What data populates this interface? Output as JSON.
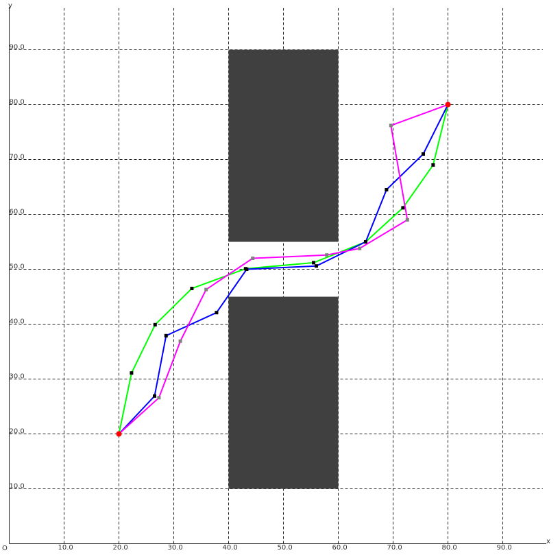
{
  "chart_data": {
    "type": "line",
    "title": "",
    "xlabel": "x",
    "ylabel": "y",
    "origin_label": "O",
    "xlim": [
      0,
      100
    ],
    "ylim": [
      0,
      100
    ],
    "grid": true,
    "x_ticks": [
      10,
      20,
      30,
      40,
      50,
      60,
      70,
      80,
      90
    ],
    "y_ticks": [
      10,
      20,
      30,
      40,
      50,
      60,
      70,
      80,
      90
    ],
    "tick_labels_x": [
      "10.0",
      "20.0",
      "30.0",
      "40.0",
      "50.0",
      "60.0",
      "70.0",
      "80.0",
      "90.0"
    ],
    "tick_labels_y": [
      "10.0",
      "20.0",
      "30.0",
      "40.0",
      "50.0",
      "60.0",
      "70.0",
      "80.0",
      "90.0"
    ],
    "obstacles": [
      {
        "x": [
          40,
          60
        ],
        "y": [
          55,
          90
        ],
        "color": "#404040"
      },
      {
        "x": [
          40,
          60
        ],
        "y": [
          10,
          45
        ],
        "color": "#404040"
      }
    ],
    "endpoints": {
      "points": [
        [
          20,
          20
        ],
        [
          80,
          80
        ]
      ],
      "color": "#ff0000"
    },
    "series": [
      {
        "color": "#00ff00",
        "marker_color": "#000000",
        "points": [
          [
            20,
            20
          ],
          [
            22.3,
            31.1
          ],
          [
            26.6,
            39.9
          ],
          [
            33.3,
            46.5
          ],
          [
            43.1,
            50.1
          ],
          [
            55.5,
            51.2
          ],
          [
            65,
            55
          ],
          [
            71.8,
            61.2
          ],
          [
            77.3,
            69
          ],
          [
            80,
            80
          ]
        ]
      },
      {
        "color": "#0000ff",
        "marker_color": "#000000",
        "points": [
          [
            20,
            20
          ],
          [
            26.5,
            26.9
          ],
          [
            28.6,
            37.9
          ],
          [
            37.8,
            42.1
          ],
          [
            43.3,
            50
          ],
          [
            56,
            50.6
          ],
          [
            65,
            55
          ],
          [
            68.8,
            64.5
          ],
          [
            75.5,
            71
          ],
          [
            80,
            80
          ]
        ]
      },
      {
        "color": "#ff00ff",
        "marker_color": "#808080",
        "points": [
          [
            20,
            20
          ],
          [
            27.3,
            26.6
          ],
          [
            31.2,
            36.9
          ],
          [
            35.9,
            46.3
          ],
          [
            44.4,
            52
          ],
          [
            57.9,
            52.6
          ],
          [
            63.9,
            53.8
          ],
          [
            72.6,
            59
          ],
          [
            69.6,
            76.2
          ],
          [
            80,
            80
          ]
        ]
      }
    ]
  }
}
